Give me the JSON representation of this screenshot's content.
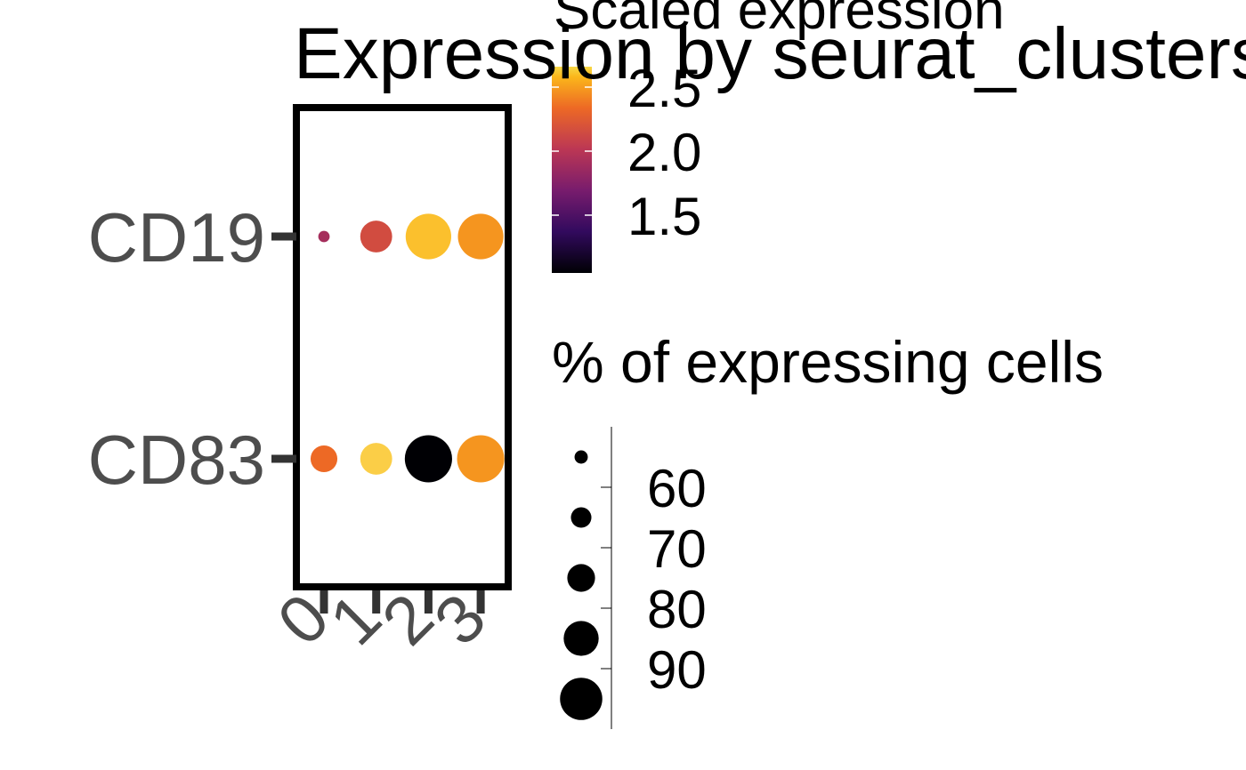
{
  "chart_data": {
    "type": "scatter",
    "title": "Expression by seurat_clusters",
    "categories": [
      "0",
      "1",
      "2",
      "3"
    ],
    "genes": [
      "CD19",
      "CD83"
    ],
    "points": [
      {
        "gene": "CD19",
        "cluster": "0",
        "pct": 55,
        "expr": 1.9
      },
      {
        "gene": "CD19",
        "cluster": "1",
        "pct": 79,
        "expr": 2.1
      },
      {
        "gene": "CD19",
        "cluster": "2",
        "pct": 95,
        "expr": 2.55
      },
      {
        "gene": "CD19",
        "cluster": "3",
        "pct": 95,
        "expr": 2.4
      },
      {
        "gene": "CD83",
        "cluster": "0",
        "pct": 73,
        "expr": 2.25
      },
      {
        "gene": "CD83",
        "cluster": "1",
        "pct": 79,
        "expr": 2.6
      },
      {
        "gene": "CD83",
        "cluster": "2",
        "pct": 97,
        "expr": 1.2
      },
      {
        "gene": "CD83",
        "cluster": "3",
        "pct": 97,
        "expr": 2.4
      }
    ],
    "color_legend": {
      "title": "Scaled expression",
      "ticks": [
        "1.5",
        "2.0",
        "2.5"
      ],
      "range": [
        1.2,
        2.65
      ]
    },
    "size_legend": {
      "title": "% of expressing cells",
      "values": [
        60,
        70,
        80,
        90
      ],
      "labels": [
        "60",
        "70",
        "80",
        "90"
      ]
    },
    "palette": [
      "#000004",
      "#320a5e",
      "#781c6d",
      "#bc3754",
      "#ed6925",
      "#fbb61a",
      "#fcffa4"
    ]
  }
}
